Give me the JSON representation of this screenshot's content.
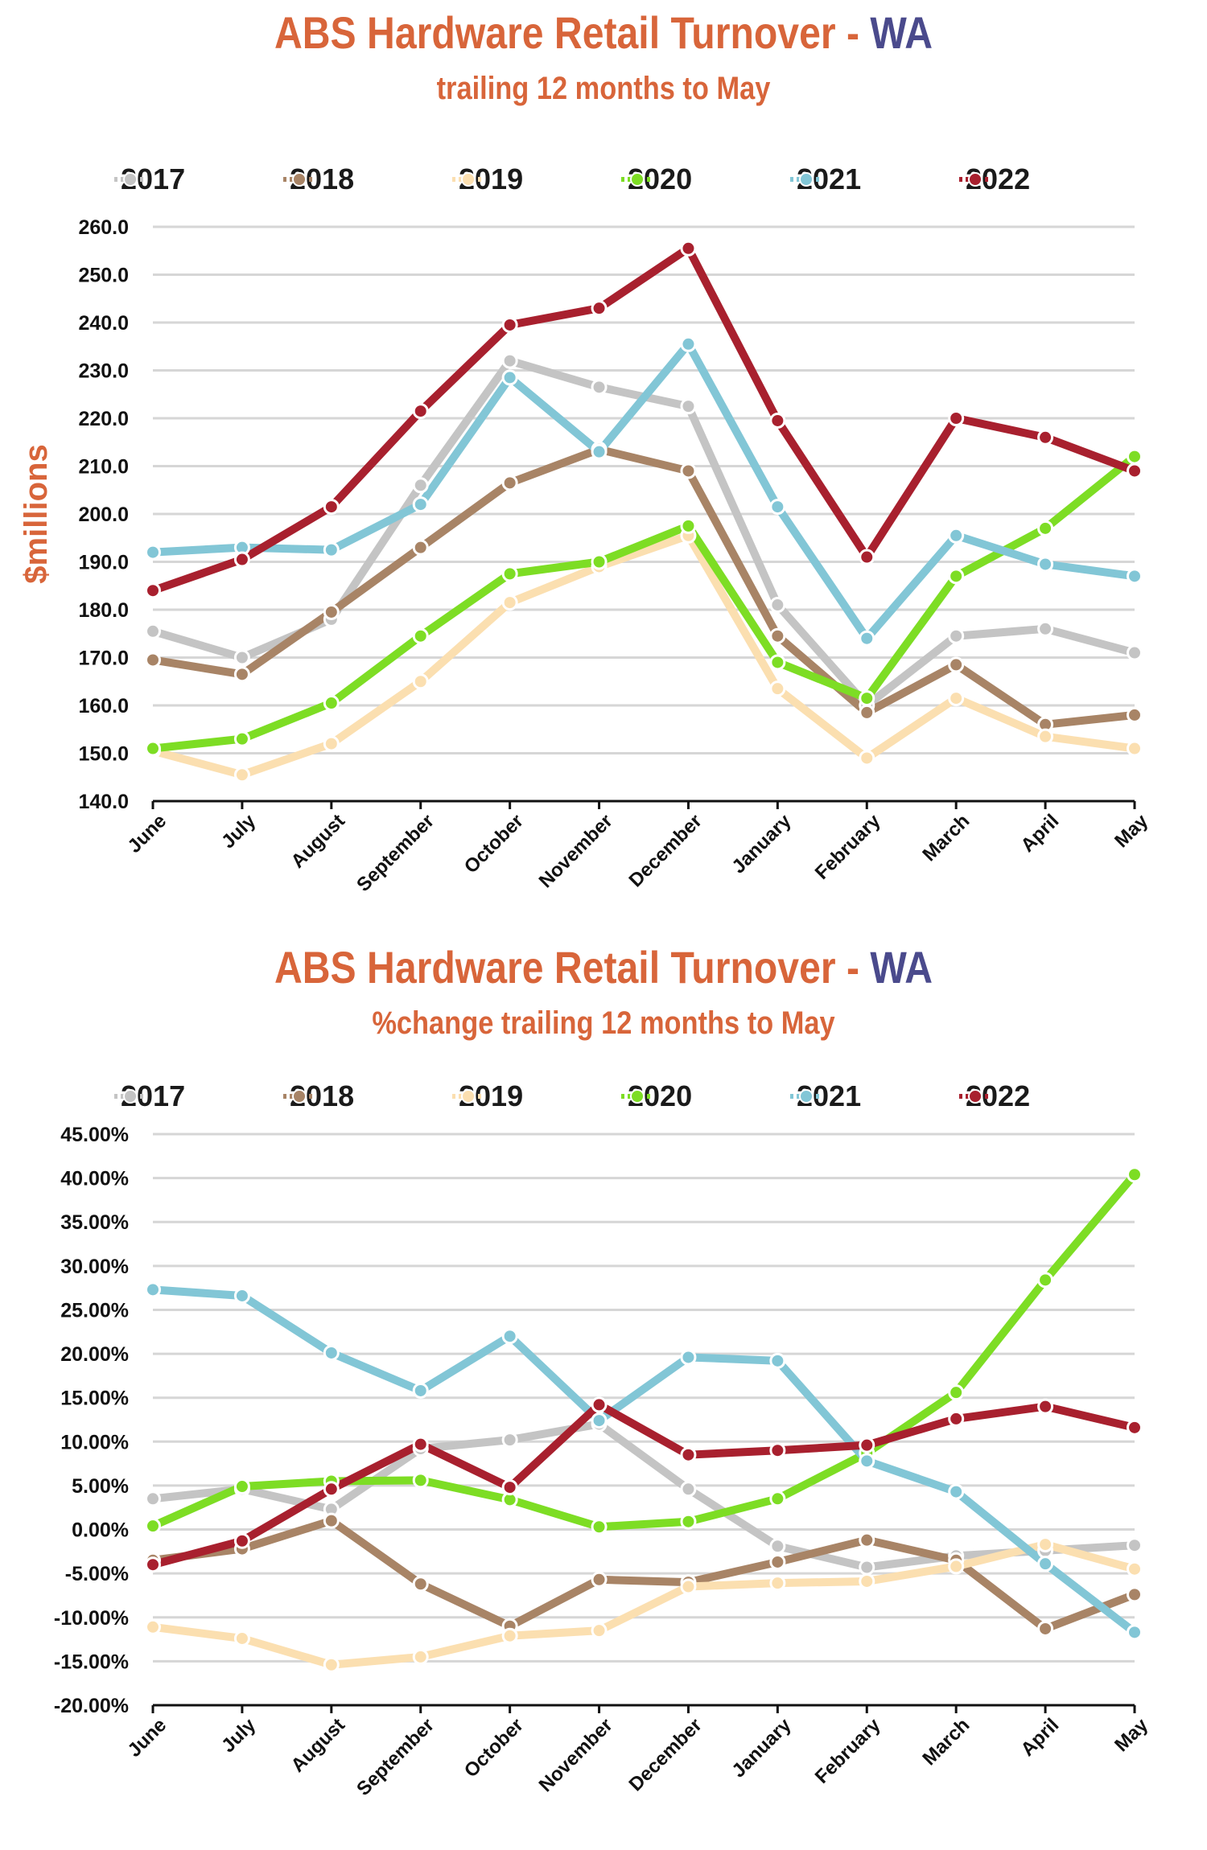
{
  "chart_data": [
    {
      "type": "line",
      "title_main": "ABS Hardware Retail Turnover - ",
      "title_accent": "WA",
      "subtitle": "trailing 12 months to May",
      "ylabel": "$millions",
      "xlabel": "",
      "ylim": [
        140,
        260
      ],
      "ytick_step": 10,
      "ytick_labels": [
        "140.0",
        "150.0",
        "160.0",
        "170.0",
        "180.0",
        "190.0",
        "200.0",
        "210.0",
        "220.0",
        "230.0",
        "240.0",
        "250.0",
        "260.0"
      ],
      "grid": true,
      "legend_position": "top",
      "categories": [
        "June",
        "July",
        "August",
        "September",
        "October",
        "November",
        "December",
        "January",
        "February",
        "March",
        "April",
        "May"
      ],
      "series": [
        {
          "name": "2017",
          "color": "#c4c4c4",
          "values": [
            175.5,
            170.0,
            178.0,
            206.0,
            232.0,
            226.5,
            222.5,
            181.0,
            160.0,
            174.5,
            176.0,
            171.0
          ]
        },
        {
          "name": "2018",
          "color": "#a88466",
          "values": [
            169.5,
            166.5,
            179.5,
            193.0,
            206.5,
            213.5,
            209.0,
            174.5,
            158.5,
            168.5,
            156.0,
            158.0
          ]
        },
        {
          "name": "2019",
          "color": "#fbdfb0",
          "values": [
            150.5,
            145.5,
            152.0,
            165.0,
            181.5,
            189.0,
            195.5,
            163.5,
            149.0,
            161.5,
            153.5,
            151.0
          ]
        },
        {
          "name": "2020",
          "color": "#7ddd24",
          "values": [
            151.0,
            153.0,
            160.5,
            174.5,
            187.5,
            190.0,
            197.5,
            169.0,
            161.5,
            187.0,
            197.0,
            212.0
          ]
        },
        {
          "name": "2021",
          "color": "#82c6d6",
          "values": [
            192.0,
            193.0,
            192.5,
            202.0,
            228.5,
            213.0,
            235.5,
            201.5,
            174.0,
            195.5,
            189.5,
            187.0
          ]
        },
        {
          "name": "2022",
          "color": "#a8202e",
          "values": [
            184.0,
            190.5,
            201.5,
            221.5,
            239.5,
            243.0,
            255.5,
            219.5,
            191.0,
            220.0,
            216.0,
            209.0
          ]
        }
      ]
    },
    {
      "type": "line",
      "title_main": "ABS Hardware Retail Turnover - ",
      "title_accent": "WA",
      "subtitle": "%change trailing 12 months to May",
      "ylabel": "",
      "xlabel": "",
      "ylim": [
        -20,
        45
      ],
      "ytick_step": 5,
      "ytick_labels": [
        "-20.00%",
        "-15.00%",
        "-10.00%",
        "-5.00%",
        "0.00%",
        "5.00%",
        "10.00%",
        "15.00%",
        "20.00%",
        "25.00%",
        "30.00%",
        "35.00%",
        "40.00%",
        "45.00%"
      ],
      "grid": true,
      "legend_position": "top",
      "categories": [
        "June",
        "July",
        "August",
        "September",
        "October",
        "November",
        "December",
        "January",
        "February",
        "March",
        "April",
        "May"
      ],
      "series": [
        {
          "name": "2017",
          "color": "#c4c4c4",
          "values": [
            3.5,
            4.6,
            2.3,
            9.2,
            10.2,
            12.0,
            4.6,
            -1.9,
            -4.3,
            -3.0,
            -2.4,
            -1.8
          ]
        },
        {
          "name": "2018",
          "color": "#a88466",
          "values": [
            -3.5,
            -2.2,
            1.0,
            -6.2,
            -11.0,
            -5.7,
            -6.0,
            -3.7,
            -1.2,
            -3.5,
            -11.3,
            -7.4
          ]
        },
        {
          "name": "2019",
          "color": "#fbdfb0",
          "values": [
            -11.1,
            -12.4,
            -15.4,
            -14.5,
            -12.1,
            -11.5,
            -6.5,
            -6.1,
            -5.9,
            -4.2,
            -1.7,
            -4.5
          ]
        },
        {
          "name": "2020",
          "color": "#7ddd24",
          "values": [
            0.4,
            4.9,
            5.5,
            5.6,
            3.4,
            0.3,
            0.9,
            3.5,
            8.7,
            15.6,
            28.4,
            40.4
          ]
        },
        {
          "name": "2021",
          "color": "#82c6d6",
          "values": [
            27.3,
            26.6,
            20.1,
            15.8,
            22.0,
            12.4,
            19.6,
            19.2,
            7.8,
            4.3,
            -3.9,
            -11.7
          ]
        },
        {
          "name": "2022",
          "color": "#a8202e",
          "values": [
            -4.0,
            -1.3,
            4.6,
            9.7,
            4.8,
            14.2,
            8.5,
            9.0,
            9.6,
            12.6,
            14.0,
            11.6
          ]
        }
      ]
    }
  ]
}
